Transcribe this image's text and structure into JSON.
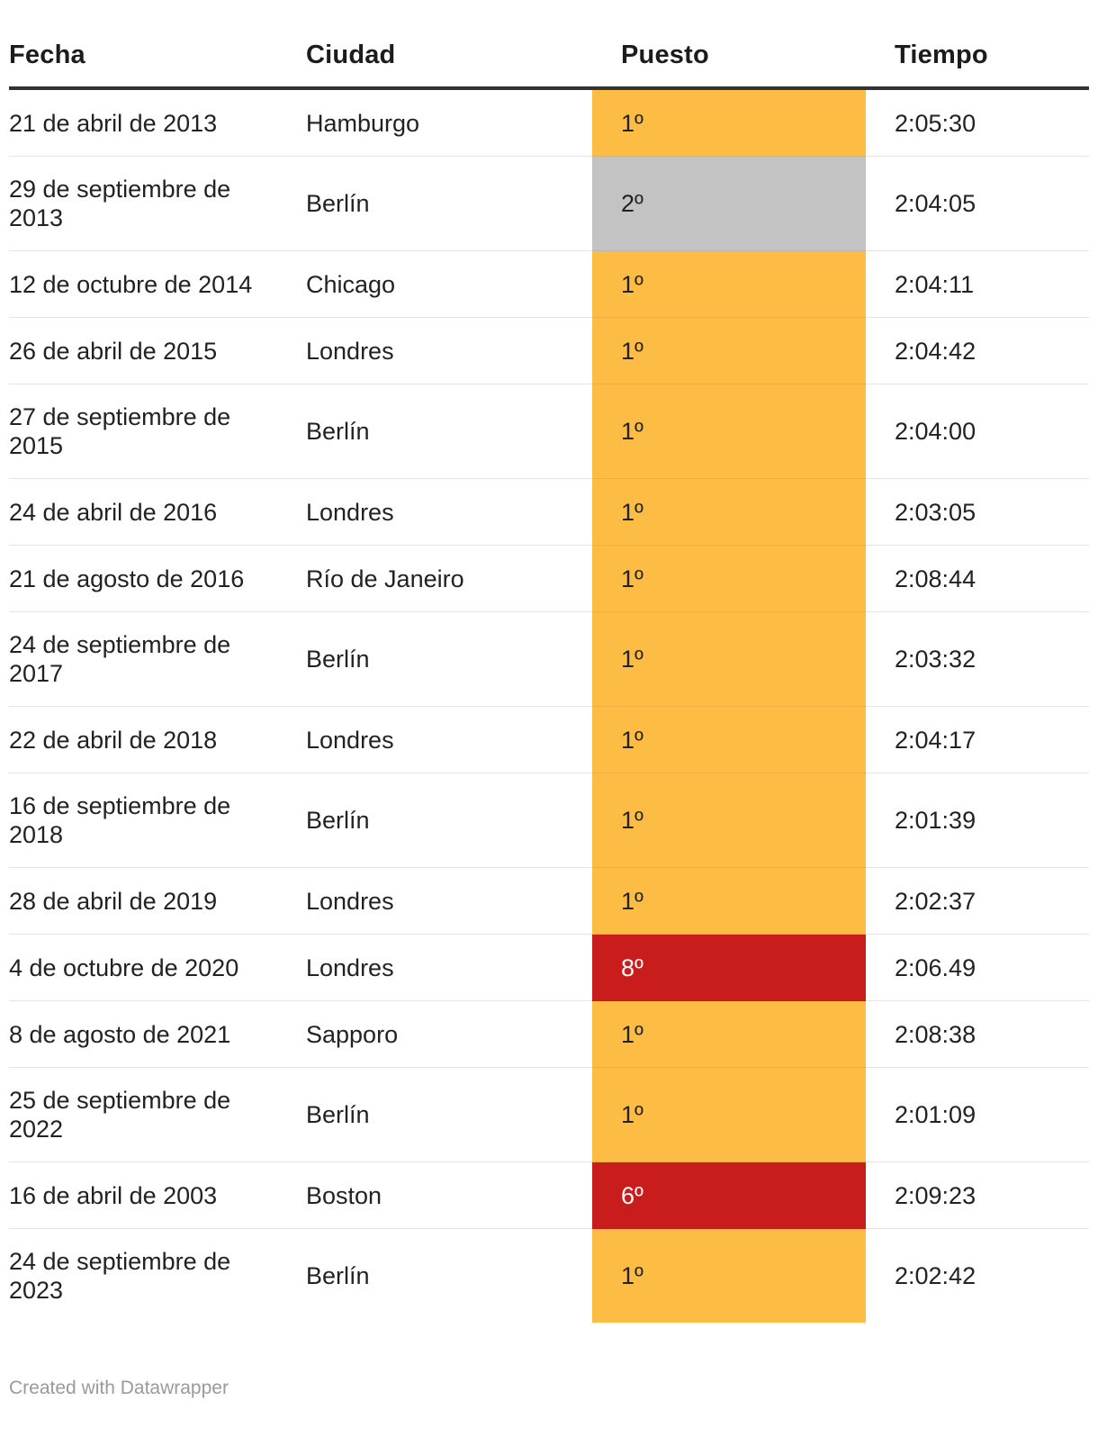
{
  "chart_data": {
    "type": "table",
    "columns": [
      "Fecha",
      "Ciudad",
      "Puesto",
      "Tiempo"
    ],
    "rows": [
      {
        "fecha": "21 de abril de 2013",
        "ciudad": "Hamburgo",
        "puesto": "1º",
        "tiempo": "2:05:30"
      },
      {
        "fecha": "29 de septiembre de 2013",
        "ciudad": "Berlín",
        "puesto": "2º",
        "tiempo": "2:04:05"
      },
      {
        "fecha": "12 de octubre de 2014",
        "ciudad": "Chicago",
        "puesto": "1º",
        "tiempo": "2:04:11"
      },
      {
        "fecha": "26 de abril de 2015",
        "ciudad": "Londres",
        "puesto": "1º",
        "tiempo": "2:04:42"
      },
      {
        "fecha": "27 de septiembre de 2015",
        "ciudad": "Berlín",
        "puesto": "1º",
        "tiempo": "2:04:00"
      },
      {
        "fecha": "24 de abril de 2016",
        "ciudad": "Londres",
        "puesto": "1º",
        "tiempo": "2:03:05"
      },
      {
        "fecha": "21 de agosto de 2016",
        "ciudad": "Río de Janeiro",
        "puesto": "1º",
        "tiempo": "2:08:44"
      },
      {
        "fecha": "24 de septiembre de 2017",
        "ciudad": "Berlín",
        "puesto": "1º",
        "tiempo": "2:03:32"
      },
      {
        "fecha": "22 de abril de 2018",
        "ciudad": "Londres",
        "puesto": "1º",
        "tiempo": "2:04:17"
      },
      {
        "fecha": "16 de septiembre de 2018",
        "ciudad": "Berlín",
        "puesto": "1º",
        "tiempo": "2:01:39"
      },
      {
        "fecha": "28 de abril de 2019",
        "ciudad": "Londres",
        "puesto": "1º",
        "tiempo": "2:02:37"
      },
      {
        "fecha": "4 de octubre de 2020",
        "ciudad": "Londres",
        "puesto": "8º",
        "tiempo": "2:06.49"
      },
      {
        "fecha": "8 de agosto de 2021",
        "ciudad": "Sapporo",
        "puesto": "1º",
        "tiempo": "2:08:38"
      },
      {
        "fecha": "25 de septiembre de 2022",
        "ciudad": "Berlín",
        "puesto": "1º",
        "tiempo": "2:01:09"
      },
      {
        "fecha": "16 de abril de 2003",
        "ciudad": "Boston",
        "puesto": "6º",
        "tiempo": "2:09:23"
      },
      {
        "fecha": "24 de septiembre de 2023",
        "ciudad": "Berlín",
        "puesto": "1º",
        "tiempo": "2:02:42"
      }
    ]
  },
  "colors": {
    "first_place": "#fdbd45",
    "second_place": "#c3c3c3",
    "other_place": "#c91c1c",
    "other_place_text": "#ffffff",
    "header_rule": "#333333",
    "row_rule": "#e4e4e4",
    "footer_text": "#9a9a9a"
  },
  "footer": {
    "credit": "Created with Datawrapper"
  }
}
